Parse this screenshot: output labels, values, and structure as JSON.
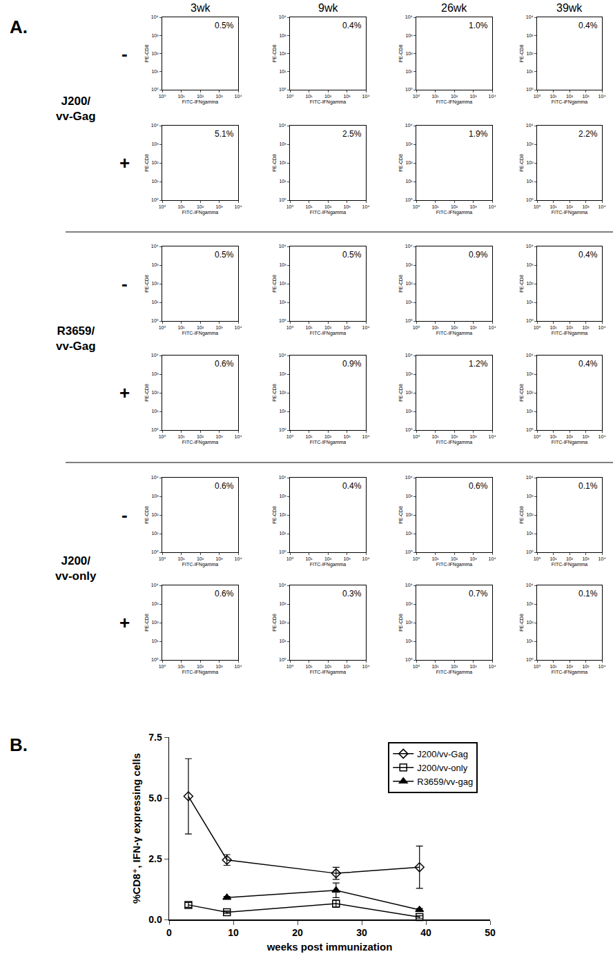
{
  "chart_data": [
    {
      "type": "scatter",
      "panel": "A.",
      "log": true,
      "x_label": "FITC-IFNgamma",
      "y_label": "PE-CD8",
      "xlim": [
        1,
        10000
      ],
      "ylim": [
        1,
        10000
      ],
      "xticks": [
        {
          "value": 1,
          "label": "10⁰"
        },
        {
          "value": 10,
          "label": "10¹"
        },
        {
          "value": 100,
          "label": "10²"
        },
        {
          "value": 1000,
          "label": "10³"
        },
        {
          "value": 10000,
          "label": "10⁴"
        }
      ],
      "yticks": [
        {
          "value": 1,
          "label": "10⁰"
        },
        {
          "value": 10,
          "label": "10¹"
        },
        {
          "value": 100,
          "label": "10²"
        },
        {
          "value": 1000,
          "label": "10³"
        },
        {
          "value": 10000,
          "label": "10⁴"
        }
      ],
      "columns": [
        "3wk",
        "9wk",
        "26wk",
        "39wk"
      ],
      "groups": [
        {
          "name": "J200/vv-Gag",
          "rows": [
            {
              "label": "-",
              "values": [
                0.5,
                0.4,
                1.0,
                0.4
              ],
              "value_labels": [
                "0.5%",
                "0.4%",
                "1.0%",
                "0.4%"
              ]
            },
            {
              "label": "+",
              "values": [
                5.1,
                2.5,
                1.9,
                2.2
              ],
              "value_labels": [
                "5.1%",
                "2.5%",
                "1.9%",
                "2.2%"
              ]
            }
          ]
        },
        {
          "name": "R3659/vv-Gag",
          "rows": [
            {
              "label": "-",
              "values": [
                0.5,
                0.5,
                0.9,
                0.4
              ],
              "value_labels": [
                "0.5%",
                "0.5%",
                "0.9%",
                "0.4%"
              ]
            },
            {
              "label": "+",
              "values": [
                0.6,
                0.9,
                1.2,
                0.4
              ],
              "value_labels": [
                "0.6%",
                "0.9%",
                "1.2%",
                "0.4%"
              ]
            }
          ]
        },
        {
          "name": "J200/vv-only",
          "rows": [
            {
              "label": "-",
              "values": [
                0.6,
                0.4,
                0.6,
                0.1
              ],
              "value_labels": [
                "0.6%",
                "0.4%",
                "0.6%",
                "0.1%"
              ]
            },
            {
              "label": "+",
              "values": [
                0.6,
                0.3,
                0.7,
                0.1
              ],
              "value_labels": [
                "0.6%",
                "0.3%",
                "0.7%",
                "0.1%"
              ]
            }
          ]
        }
      ]
    },
    {
      "type": "line",
      "panel": "B.",
      "x_label": "weeks post immunization",
      "y_label": "%CD8⁺, IFN-γ expressing cells",
      "xlim": [
        0,
        50
      ],
      "xticks": [
        0,
        10,
        20,
        30,
        40,
        50
      ],
      "ylim": [
        0,
        7.5
      ],
      "yticks": [
        {
          "value": 0,
          "label": "0.0"
        },
        2.5,
        {
          "value": 5,
          "label": "5.0"
        },
        7.5
      ],
      "legend": "top right",
      "series": [
        {
          "name": "J200/vv-Gag",
          "color": "#000000",
          "marker": "diamond-open",
          "line_style": "solid",
          "x": [
            3,
            9,
            26,
            39
          ],
          "values": [
            5.07,
            2.45,
            1.9,
            2.15
          ],
          "error": [
            1.55,
            0.22,
            0.25,
            0.87
          ]
        },
        {
          "name": "J200/vv-only",
          "color": "#000000",
          "marker": "square-open",
          "line_style": "solid",
          "x": [
            3,
            9,
            26,
            39
          ],
          "values": [
            0.6,
            0.3,
            0.65,
            0.1
          ],
          "error": [
            0.1,
            0.05,
            0.15,
            0.05
          ]
        },
        {
          "name": "R3659/vv-gag",
          "color": "#000000",
          "marker": "triangle-up",
          "line_style": "solid",
          "x": [
            9,
            26,
            39
          ],
          "values": [
            0.9,
            1.2,
            0.4
          ],
          "error": [
            0.05,
            0.3,
            0.05
          ]
        }
      ]
    }
  ]
}
